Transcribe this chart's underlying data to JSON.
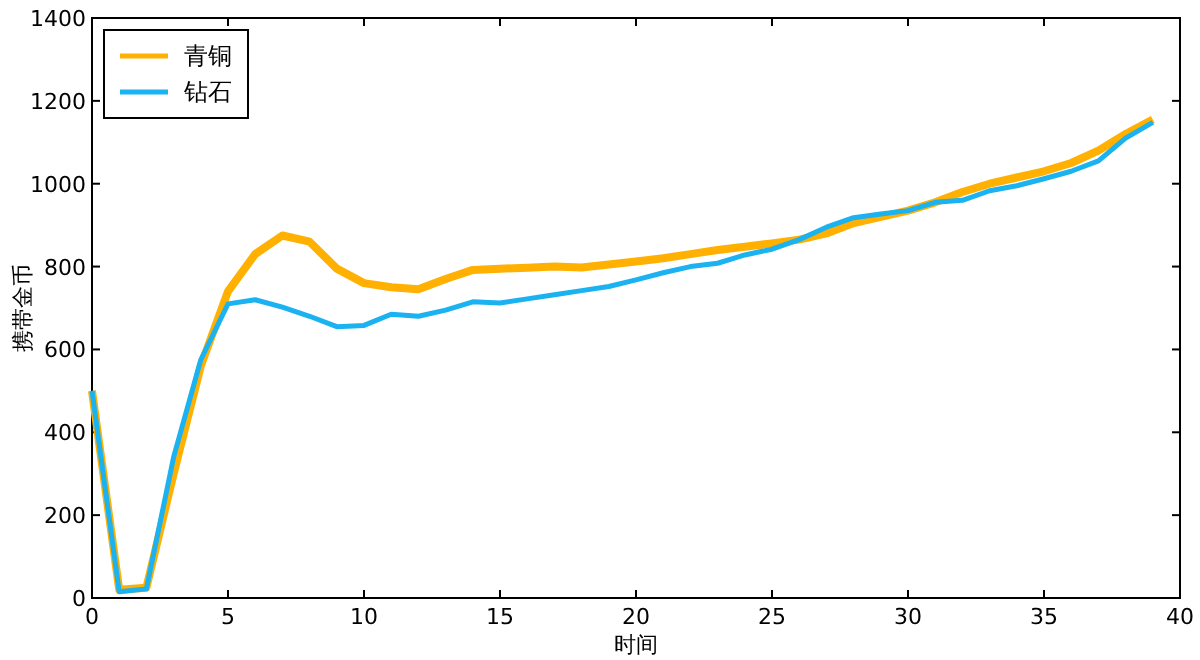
{
  "chart_data": {
    "type": "line",
    "xlabel": "时间",
    "ylabel": "携带金币",
    "x": [
      0,
      1,
      2,
      3,
      4,
      5,
      6,
      7,
      8,
      9,
      10,
      11,
      12,
      13,
      14,
      15,
      16,
      17,
      18,
      19,
      20,
      21,
      22,
      23,
      24,
      25,
      26,
      27,
      28,
      29,
      30,
      31,
      32,
      33,
      34,
      35,
      36,
      37,
      38,
      39
    ],
    "series": [
      {
        "name": "青铜",
        "color": "#ffb000",
        "values": [
          500,
          20,
          25,
          300,
          560,
          740,
          830,
          875,
          860,
          795,
          760,
          750,
          745,
          770,
          792,
          795,
          797,
          800,
          798,
          805,
          812,
          820,
          830,
          840,
          848,
          856,
          865,
          880,
          905,
          920,
          935,
          955,
          980,
          1000,
          1015,
          1030,
          1050,
          1080,
          1120,
          1155
        ]
      },
      {
        "name": "钻石",
        "color": "#1ab2f0",
        "values": [
          500,
          15,
          22,
          340,
          575,
          710,
          720,
          702,
          680,
          655,
          658,
          685,
          680,
          695,
          715,
          712,
          722,
          732,
          742,
          752,
          768,
          785,
          800,
          808,
          828,
          842,
          865,
          895,
          918,
          927,
          935,
          955,
          960,
          983,
          995,
          1012,
          1030,
          1055,
          1110,
          1148
        ]
      }
    ],
    "xlim": [
      0,
      40
    ],
    "xticks": [
      0,
      5,
      10,
      15,
      20,
      25,
      30,
      35,
      40
    ],
    "ylim": [
      0,
      1400
    ],
    "yticks": [
      0,
      200,
      400,
      600,
      800,
      1000,
      1200,
      1400
    ],
    "grid": false,
    "legend": "top left",
    "marker": "none",
    "line_style": "solid"
  }
}
